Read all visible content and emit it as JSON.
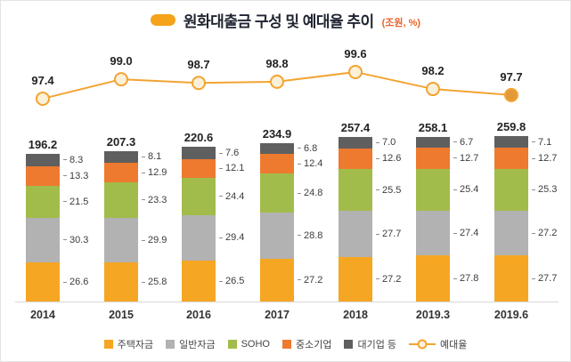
{
  "title": {
    "text": "원화대출금 구성 및 예대율 추이",
    "unit": "(조원, %)"
  },
  "colors": {
    "housing": "#F5A623",
    "general": "#B2B2B2",
    "soho": "#A2BC4B",
    "sme": "#ED7A2F",
    "large": "#5F5F5F",
    "line": "#F2A432",
    "marker_fill": "#FBF0D8",
    "marker_last_fill": "#E29A36",
    "accent": "#F5A31B",
    "unit_text": "#E8642C"
  },
  "legend": [
    {
      "label": "주택자금",
      "key": "housing",
      "type": "box"
    },
    {
      "label": "일반자금",
      "key": "general",
      "type": "box"
    },
    {
      "label": "SOHO",
      "key": "soho",
      "type": "box"
    },
    {
      "label": "중소기업",
      "key": "sme",
      "type": "box"
    },
    {
      "label": "대기업 등",
      "key": "large",
      "type": "box"
    },
    {
      "label": "예대율",
      "key": "line",
      "type": "line"
    }
  ],
  "chart_data": {
    "type": "stacked-bar-with-line",
    "title": "원화대출금 구성 및 예대율 추이",
    "unit_note": "(조원, %)",
    "categories": [
      "2014",
      "2015",
      "2016",
      "2017",
      "2018",
      "2019.3",
      "2019.6"
    ],
    "totals": [
      196.2,
      207.3,
      220.6,
      234.9,
      257.4,
      258.1,
      259.8
    ],
    "series": [
      {
        "name": "주택자금",
        "key": "housing",
        "values": [
          26.6,
          25.8,
          26.5,
          27.2,
          27.2,
          27.8,
          27.7
        ]
      },
      {
        "name": "일반자금",
        "key": "general",
        "values": [
          30.3,
          29.9,
          29.4,
          28.8,
          27.7,
          27.4,
          27.2
        ]
      },
      {
        "name": "SOHO",
        "key": "soho",
        "values": [
          21.5,
          23.3,
          24.4,
          24.8,
          25.5,
          25.4,
          25.3
        ]
      },
      {
        "name": "중소기업",
        "key": "sme",
        "values": [
          13.3,
          12.9,
          12.1,
          12.4,
          12.6,
          12.7,
          12.7
        ]
      },
      {
        "name": "대기업 등",
        "key": "large",
        "values": [
          8.3,
          8.1,
          7.6,
          6.8,
          7.0,
          6.7,
          7.1
        ]
      }
    ],
    "line": {
      "name": "예대율",
      "values": [
        97.4,
        99.0,
        98.7,
        98.8,
        99.6,
        98.2,
        97.7
      ]
    }
  }
}
